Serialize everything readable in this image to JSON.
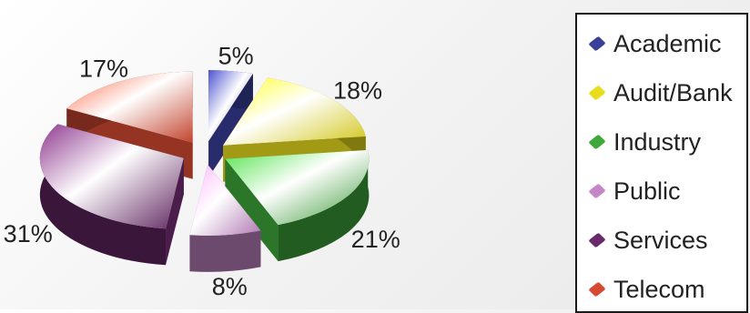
{
  "chart_data": {
    "type": "pie",
    "title": "",
    "categories": [
      "Academic",
      "Audit/Bank",
      "Industry",
      "Public",
      "Services",
      "Telecom"
    ],
    "values": [
      5,
      18,
      21,
      8,
      31,
      17
    ],
    "value_labels": [
      "5%",
      "18%",
      "21%",
      "8%",
      "31%",
      "17%"
    ],
    "colors": [
      "#3a3f9a",
      "#e8dc1c",
      "#3fa83a",
      "#c486c8",
      "#6a2a6a",
      "#d64a32"
    ],
    "exploded": true,
    "style": "3d",
    "legend": {
      "position": "right",
      "items": [
        "Academic",
        "Audit/Bank",
        "Industry",
        "Public",
        "Services",
        "Telecom"
      ]
    }
  }
}
